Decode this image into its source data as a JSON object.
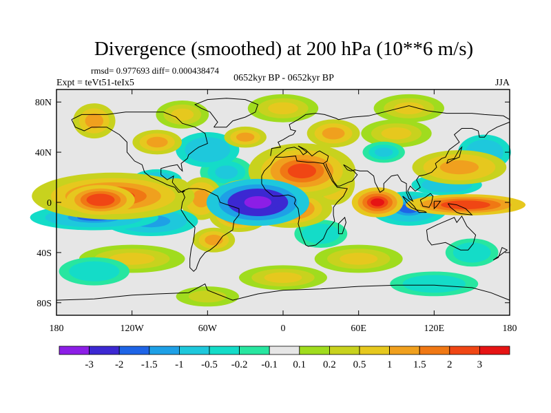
{
  "chart_data": {
    "type": "heatmap",
    "title": "Divergence (smoothed) at 200 hPa (10**6 m/s)",
    "stats_text": "rmsd= 0.977693 diff= 0.000438474",
    "experiment_text": "Expt = teVt51-teIx5",
    "period_text": "0652kyr BP - 0652kyr BP",
    "season_text": "JJA",
    "x_ticks": [
      {
        "value": -180,
        "label": "180"
      },
      {
        "value": -120,
        "label": "120W"
      },
      {
        "value": -60,
        "label": "60W"
      },
      {
        "value": 0,
        "label": "0"
      },
      {
        "value": 60,
        "label": "60E"
      },
      {
        "value": 120,
        "label": "120E"
      },
      {
        "value": 180,
        "label": "180"
      }
    ],
    "y_ticks": [
      {
        "value": 80,
        "label": "80N"
      },
      {
        "value": 40,
        "label": "40N"
      },
      {
        "value": 0,
        "label": "0"
      },
      {
        "value": -40,
        "label": "40S"
      },
      {
        "value": -80,
        "label": "80S"
      }
    ],
    "xlim": [
      -180,
      180
    ],
    "ylim": [
      -90,
      90
    ],
    "colorbar": {
      "colors": [
        "#8c1ee6",
        "#3c28d2",
        "#1e64e6",
        "#1ea0e6",
        "#1ec8dc",
        "#14dcc8",
        "#28e6a0",
        "#e6e6e6",
        "#a0dc1e",
        "#c8d21e",
        "#e6c81e",
        "#f0a01e",
        "#f07814",
        "#f04614",
        "#e61414"
      ],
      "labels": [
        "-3",
        "-2",
        "-1.5",
        "-1",
        "-0.5",
        "-0.2",
        "-0.1",
        "0.1",
        "0.2",
        "0.5",
        "1",
        "1.5",
        "2",
        "3"
      ]
    },
    "features": [
      {
        "lon": -135,
        "lat": 5,
        "rlon": 38,
        "rlat": 11,
        "v": 2.3
      },
      {
        "lon": -145,
        "lat": 2,
        "rlon": 16,
        "rlat": 7,
        "v": 2.8
      },
      {
        "lon": -150,
        "lat": -12,
        "rlon": 30,
        "rlat": 6,
        "v": -1.6
      },
      {
        "lon": -105,
        "lat": -15,
        "rlon": 22,
        "rlat": 7,
        "v": -1.4
      },
      {
        "lon": -100,
        "lat": 18,
        "rlon": 14,
        "rlat": 6,
        "v": -0.8
      },
      {
        "lon": -85,
        "lat": 8,
        "rlon": 9,
        "rlat": 8,
        "v": 1.2
      },
      {
        "lon": -65,
        "lat": 3,
        "rlon": 10,
        "rlat": 10,
        "v": 1.3
      },
      {
        "lon": -45,
        "lat": 24,
        "rlon": 15,
        "rlat": 9,
        "v": -0.6
      },
      {
        "lon": -20,
        "lat": 0,
        "rlon": 24,
        "rlat": 11,
        "v": -3.5
      },
      {
        "lon": -28,
        "lat": 8,
        "rlon": 14,
        "rlat": 6,
        "v": 2.2
      },
      {
        "lon": -35,
        "lat": -10,
        "rlon": 14,
        "rlat": 8,
        "v": 2.0
      },
      {
        "lon": 5,
        "lat": -5,
        "rlon": 20,
        "rlat": 9,
        "v": 2.1
      },
      {
        "lon": 8,
        "lat": 5,
        "rlon": 14,
        "rlat": 6,
        "v": -1.6
      },
      {
        "lon": 15,
        "lat": 25,
        "rlon": 25,
        "rlat": 13,
        "v": 2.2
      },
      {
        "lon": 40,
        "lat": 15,
        "rlon": 10,
        "rlat": 10,
        "v": 1.5
      },
      {
        "lon": -55,
        "lat": -30,
        "rlon": 12,
        "rlat": 7,
        "v": 1.0
      },
      {
        "lon": 75,
        "lat": 0,
        "rlon": 12,
        "rlat": 7,
        "v": 3.0
      },
      {
        "lon": 100,
        "lat": -5,
        "rlon": 18,
        "rlat": 8,
        "v": -1.6
      },
      {
        "lon": 145,
        "lat": -2,
        "rlon": 28,
        "rlat": 5,
        "v": 2.6
      },
      {
        "lon": 130,
        "lat": 14,
        "rlon": 20,
        "rlat": 6,
        "v": -1.0
      },
      {
        "lon": 140,
        "lat": 28,
        "rlon": 22,
        "rlat": 8,
        "v": 1.3
      },
      {
        "lon": 160,
        "lat": 40,
        "rlon": 15,
        "rlat": 10,
        "v": -0.8
      },
      {
        "lon": -60,
        "lat": 42,
        "rlon": 18,
        "rlat": 10,
        "v": -1.0
      },
      {
        "lon": -100,
        "lat": 48,
        "rlon": 14,
        "rlat": 7,
        "v": 1.0
      },
      {
        "lon": -30,
        "lat": 52,
        "rlon": 12,
        "rlat": 6,
        "v": 1.0
      },
      {
        "lon": 40,
        "lat": 55,
        "rlon": 15,
        "rlat": 8,
        "v": 1.0
      },
      {
        "lon": 90,
        "lat": 55,
        "rlon": 20,
        "rlat": 8,
        "v": 0.6
      },
      {
        "lon": 80,
        "lat": 40,
        "rlon": 12,
        "rlat": 6,
        "v": -0.6
      },
      {
        "lon": -150,
        "lat": 65,
        "rlon": 12,
        "rlat": 10,
        "v": 1.0
      },
      {
        "lon": -80,
        "lat": 70,
        "rlon": 15,
        "rlat": 8,
        "v": 0.5
      },
      {
        "lon": 0,
        "lat": 75,
        "rlon": 20,
        "rlat": 8,
        "v": 0.5
      },
      {
        "lon": 100,
        "lat": 75,
        "rlon": 20,
        "rlat": 8,
        "v": 0.5
      },
      {
        "lon": -120,
        "lat": -45,
        "rlon": 30,
        "rlat": 8,
        "v": 0.5
      },
      {
        "lon": 60,
        "lat": -45,
        "rlon": 25,
        "rlat": 8,
        "v": 0.5
      },
      {
        "lon": 30,
        "lat": -25,
        "rlon": 15,
        "rlat": 8,
        "v": -0.5
      },
      {
        "lon": 150,
        "lat": -40,
        "rlon": 15,
        "rlat": 8,
        "v": -0.5
      },
      {
        "lon": -150,
        "lat": -55,
        "rlon": 20,
        "rlat": 8,
        "v": -0.5
      },
      {
        "lon": 0,
        "lat": -60,
        "rlon": 25,
        "rlat": 7,
        "v": 0.5
      },
      {
        "lon": 120,
        "lat": -65,
        "rlon": 25,
        "rlat": 7,
        "v": -0.5
      },
      {
        "lon": -60,
        "lat": -75,
        "rlon": 25,
        "rlat": 8,
        "v": 0.3
      }
    ]
  }
}
